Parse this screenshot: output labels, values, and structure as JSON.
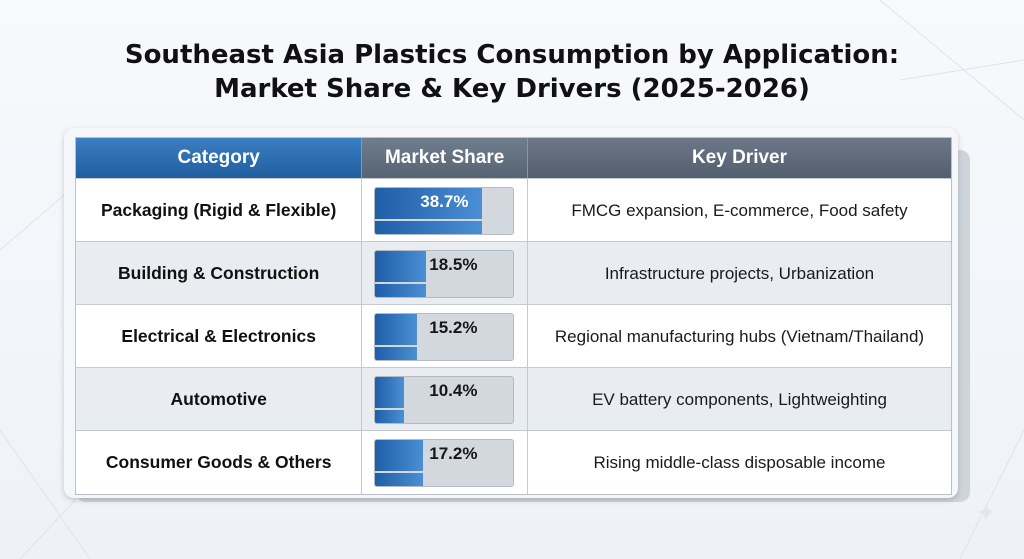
{
  "title_line1": "Southeast Asia Plastics Consumption by Application:",
  "title_line2": "Market Share & Key Drivers (2025-2026)",
  "headers": {
    "category": "Category",
    "market_share": "Market Share",
    "key_driver": "Key Driver"
  },
  "rows": [
    {
      "category": "Packaging (Rigid & Flexible)",
      "share_label": "38.7%",
      "key_driver": "FMCG expansion, E-commerce, Food safety"
    },
    {
      "category": "Building & Construction",
      "share_label": "18.5%",
      "key_driver": "Infrastructure projects, Urbanization"
    },
    {
      "category": "Electrical & Electronics",
      "share_label": "15.2%",
      "key_driver": "Regional manufacturing hubs (Vietnam/Thailand)"
    },
    {
      "category": "Automotive",
      "share_label": "10.4%",
      "key_driver": "EV battery components, Lightweighting"
    },
    {
      "category": "Consumer Goods & Others",
      "share_label": "17.2%",
      "key_driver": "Rising middle-class disposable income"
    }
  ],
  "chart_data": {
    "type": "table",
    "title": "Southeast Asia Plastics Consumption by Application: Market Share & Key Drivers (2025-2026)",
    "columns": [
      "Category",
      "Market Share",
      "Key Driver"
    ],
    "categories": [
      "Packaging (Rigid & Flexible)",
      "Building & Construction",
      "Electrical & Electronics",
      "Automotive",
      "Consumer Goods & Others"
    ],
    "values": [
      38.7,
      18.5,
      15.2,
      10.4,
      17.2
    ],
    "unit": "%",
    "bar_scale_max": 50
  },
  "colors": {
    "header_blue": "#2a6db3",
    "header_gray": "#5f6b7a",
    "bar_blue": "#2f75bf",
    "track_gray": "#d3d8df"
  }
}
